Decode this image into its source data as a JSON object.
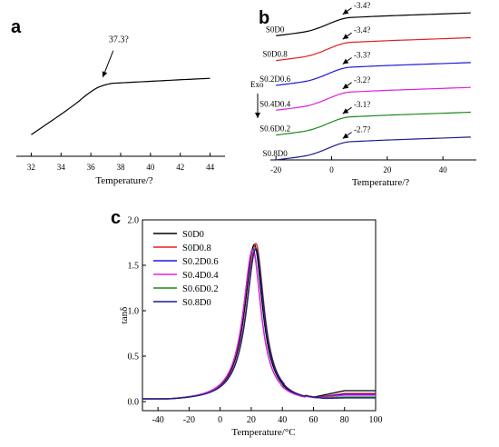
{
  "chart_data": [
    {
      "panel": "a",
      "type": "line",
      "xlabel": "Temperature/?",
      "ylabel": "",
      "xlim": [
        31,
        45
      ],
      "x_ticks": [
        32,
        34,
        36,
        38,
        40,
        42,
        44
      ],
      "y_axis_visible": false,
      "grid": false,
      "annotations": [
        {
          "text": "37.3?",
          "x": 36.8
        }
      ],
      "series": [
        {
          "color": "#000000",
          "points": [
            [
              32,
              0.18
            ],
            [
              33,
              0.265
            ],
            [
              34,
              0.35
            ],
            [
              35,
              0.44
            ],
            [
              35.8,
              0.52
            ],
            [
              36.5,
              0.575
            ],
            [
              37.3,
              0.605
            ],
            [
              38,
              0.612
            ],
            [
              40,
              0.625
            ],
            [
              42,
              0.638
            ],
            [
              44,
              0.65
            ]
          ]
        }
      ]
    },
    {
      "panel": "b",
      "type": "line",
      "xlabel": "Temperature/?",
      "ylabel": "",
      "xlim": [
        -22,
        52
      ],
      "x_ticks": [
        -20,
        0,
        20,
        40
      ],
      "y_axis_visible": false,
      "grid": false,
      "side_label": "Exo",
      "series": [
        {
          "name": "S0D0",
          "color": "#000000",
          "tg_label": "-3.4?",
          "offset": 10.0,
          "points": [
            [
              -20,
              0.0
            ],
            [
              -10,
              0.3
            ],
            [
              -5,
              0.6
            ],
            [
              0,
              1.05
            ],
            [
              3,
              1.3
            ],
            [
              6,
              1.45
            ],
            [
              10,
              1.5
            ],
            [
              20,
              1.6
            ],
            [
              35,
              1.72
            ],
            [
              50,
              1.84
            ]
          ]
        },
        {
          "name": "S0D0.8",
          "color": "#e02020",
          "tg_label": "-3.4?",
          "offset": 8.0,
          "points": [
            [
              -20,
              0.0
            ],
            [
              -10,
              0.3
            ],
            [
              -5,
              0.6
            ],
            [
              0,
              1.05
            ],
            [
              3,
              1.3
            ],
            [
              6,
              1.45
            ],
            [
              10,
              1.5
            ],
            [
              20,
              1.6
            ],
            [
              35,
              1.72
            ],
            [
              50,
              1.84
            ]
          ]
        },
        {
          "name": "S0.2D0.6",
          "color": "#1a1adc",
          "tg_label": "-3.3?",
          "offset": 6.0,
          "points": [
            [
              -20,
              0.0
            ],
            [
              -10,
              0.3
            ],
            [
              -5,
              0.6
            ],
            [
              0,
              1.05
            ],
            [
              3,
              1.3
            ],
            [
              6,
              1.45
            ],
            [
              10,
              1.5
            ],
            [
              20,
              1.6
            ],
            [
              35,
              1.72
            ],
            [
              50,
              1.84
            ]
          ]
        },
        {
          "name": "S0.4D0.4",
          "color": "#e020e0",
          "tg_label": "-3.2?",
          "offset": 4.0,
          "points": [
            [
              -20,
              0.0
            ],
            [
              -10,
              0.3
            ],
            [
              -5,
              0.6
            ],
            [
              0,
              1.05
            ],
            [
              3,
              1.3
            ],
            [
              6,
              1.45
            ],
            [
              10,
              1.5
            ],
            [
              20,
              1.6
            ],
            [
              35,
              1.72
            ],
            [
              50,
              1.84
            ]
          ]
        },
        {
          "name": "S0.6D0.2",
          "color": "#1a8a1a",
          "tg_label": "-3.1?",
          "offset": 2.0,
          "points": [
            [
              -20,
              0.0
            ],
            [
              -10,
              0.3
            ],
            [
              -5,
              0.6
            ],
            [
              0,
              1.05
            ],
            [
              3,
              1.3
            ],
            [
              6,
              1.45
            ],
            [
              10,
              1.5
            ],
            [
              20,
              1.6
            ],
            [
              35,
              1.72
            ],
            [
              50,
              1.84
            ]
          ]
        },
        {
          "name": "S0.8D0",
          "color": "#1c1c8c",
          "tg_label": "-2.7?",
          "offset": 0.0,
          "points": [
            [
              -20,
              0.0
            ],
            [
              -10,
              0.3
            ],
            [
              -5,
              0.6
            ],
            [
              0,
              1.05
            ],
            [
              3,
              1.3
            ],
            [
              6,
              1.45
            ],
            [
              10,
              1.5
            ],
            [
              20,
              1.6
            ],
            [
              35,
              1.72
            ],
            [
              50,
              1.84
            ]
          ]
        }
      ]
    },
    {
      "panel": "c",
      "type": "line",
      "xlabel": "Temperature/°C",
      "ylabel": "tanδ",
      "xlim": [
        -50,
        100
      ],
      "ylim": [
        -0.1,
        2.0
      ],
      "x_ticks": [
        -40,
        -20,
        0,
        20,
        40,
        60,
        80,
        100
      ],
      "y_ticks": [
        0.0,
        0.5,
        1.0,
        1.5,
        2.0
      ],
      "grid": false,
      "legend_position": "top-left",
      "series": [
        {
          "name": "S0D0",
          "color": "#000000",
          "peak_x": 22,
          "peak_y": 1.73,
          "tail": 0.09
        },
        {
          "name": "S0D0.8",
          "color": "#e02020",
          "peak_x": 23,
          "peak_y": 1.74,
          "tail": 0.06
        },
        {
          "name": "S0.2D0.6",
          "color": "#1a1adc",
          "peak_x": 21,
          "peak_y": 1.68,
          "tail": 0.05
        },
        {
          "name": "S0.4D0.4",
          "color": "#e020e0",
          "peak_x": 21,
          "peak_y": 1.67,
          "tail": 0.04
        },
        {
          "name": "S0.6D0.2",
          "color": "#1a8a1a",
          "peak_x": 23,
          "peak_y": 1.69,
          "tail": 0.02
        },
        {
          "name": "S0.8D0",
          "color": "#1c1c8c",
          "peak_x": 23,
          "peak_y": 1.68,
          "tail": 0.01
        }
      ]
    }
  ],
  "panel_labels": {
    "a": "a",
    "b": "b",
    "c": "c"
  }
}
